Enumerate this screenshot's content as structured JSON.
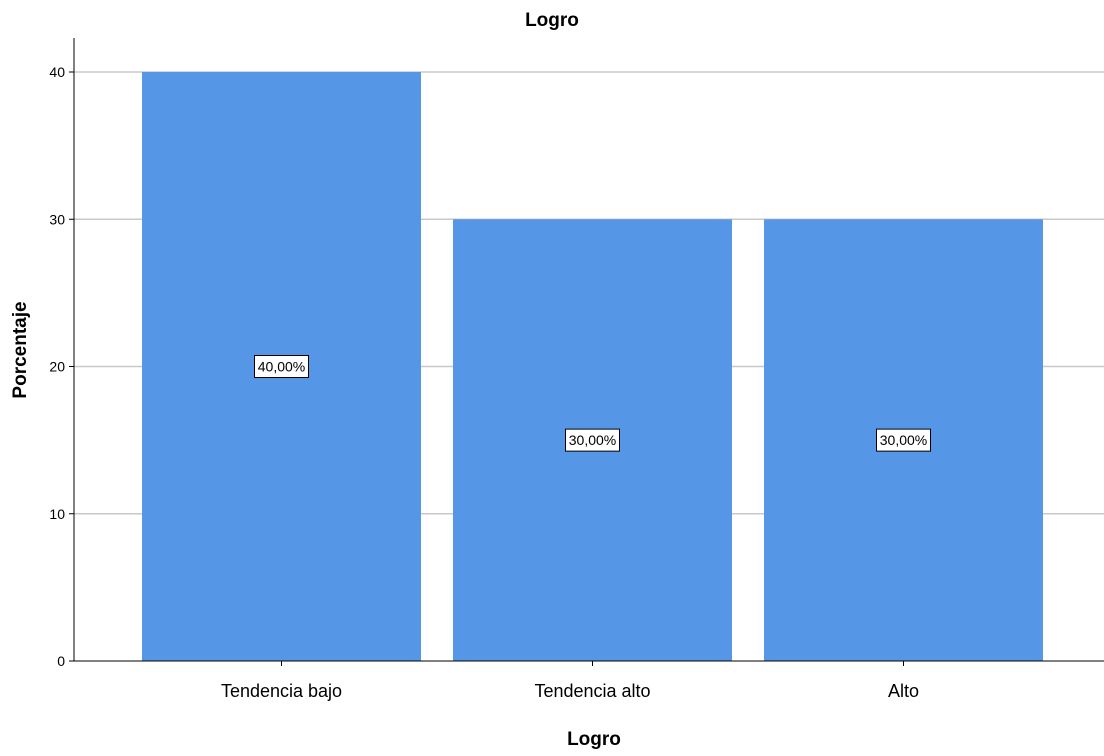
{
  "chart_data": {
    "type": "bar",
    "title": "Logro",
    "xlabel": "Logro",
    "ylabel": "Porcentaje",
    "categories": [
      "Tendencia bajo",
      "Tendencia alto",
      "Alto"
    ],
    "values": [
      40,
      30,
      30
    ],
    "data_labels": [
      "40,00%",
      "30,00%",
      "30,00%"
    ],
    "yticks": [
      "0",
      "10",
      "20",
      "30",
      "40"
    ],
    "ylim": [
      0,
      40
    ],
    "grid": true,
    "bar_color": "#5596e6",
    "grid_color": "#c8c8c8"
  }
}
